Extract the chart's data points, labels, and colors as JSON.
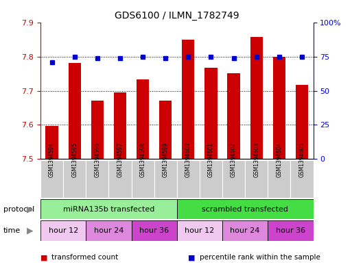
{
  "title": "GDS6100 / ILMN_1782749",
  "samples": [
    "GSM1394594",
    "GSM1394595",
    "GSM1394596",
    "GSM1394597",
    "GSM1394598",
    "GSM1394599",
    "GSM1394600",
    "GSM1394601",
    "GSM1394602",
    "GSM1394603",
    "GSM1394604",
    "GSM1394605"
  ],
  "bar_values": [
    7.597,
    7.782,
    7.672,
    7.695,
    7.733,
    7.672,
    7.85,
    7.768,
    7.752,
    7.858,
    7.8,
    7.718
  ],
  "percentile_values": [
    71,
    75,
    74,
    74,
    75,
    74,
    75,
    75,
    74,
    75,
    75,
    75
  ],
  "bar_bottom": 7.5,
  "ylim_left": [
    7.5,
    7.9
  ],
  "ylim_right": [
    0,
    100
  ],
  "right_ticks": [
    0,
    25,
    50,
    75,
    100
  ],
  "right_tick_labels": [
    "0",
    "25",
    "50",
    "75",
    "100%"
  ],
  "left_ticks": [
    7.5,
    7.6,
    7.7,
    7.8,
    7.9
  ],
  "bar_color": "#cc0000",
  "dot_color": "#0000cc",
  "protocol_groups": [
    {
      "label": "miRNA135b transfected",
      "start": 0,
      "end": 6,
      "color": "#99ee99"
    },
    {
      "label": "scrambled transfected",
      "start": 6,
      "end": 12,
      "color": "#44dd44"
    }
  ],
  "time_groups": [
    {
      "label": "hour 12",
      "start": 0,
      "end": 2,
      "color": "#f0c8f0"
    },
    {
      "label": "hour 24",
      "start": 2,
      "end": 4,
      "color": "#dd88dd"
    },
    {
      "label": "hour 36",
      "start": 4,
      "end": 6,
      "color": "#cc44cc"
    },
    {
      "label": "hour 12",
      "start": 6,
      "end": 8,
      "color": "#f0c8f0"
    },
    {
      "label": "hour 24",
      "start": 8,
      "end": 10,
      "color": "#dd88dd"
    },
    {
      "label": "hour 36",
      "start": 10,
      "end": 12,
      "color": "#cc44cc"
    }
  ],
  "legend_items": [
    {
      "label": "transformed count",
      "color": "#cc0000"
    },
    {
      "label": "percentile rank within the sample",
      "color": "#0000cc"
    }
  ],
  "protocol_label": "protocol",
  "time_label": "time",
  "background_color": "#ffffff",
  "plot_bg_color": "#ffffff",
  "gridline_color": "#000000",
  "sample_bg_color": "#cccccc"
}
